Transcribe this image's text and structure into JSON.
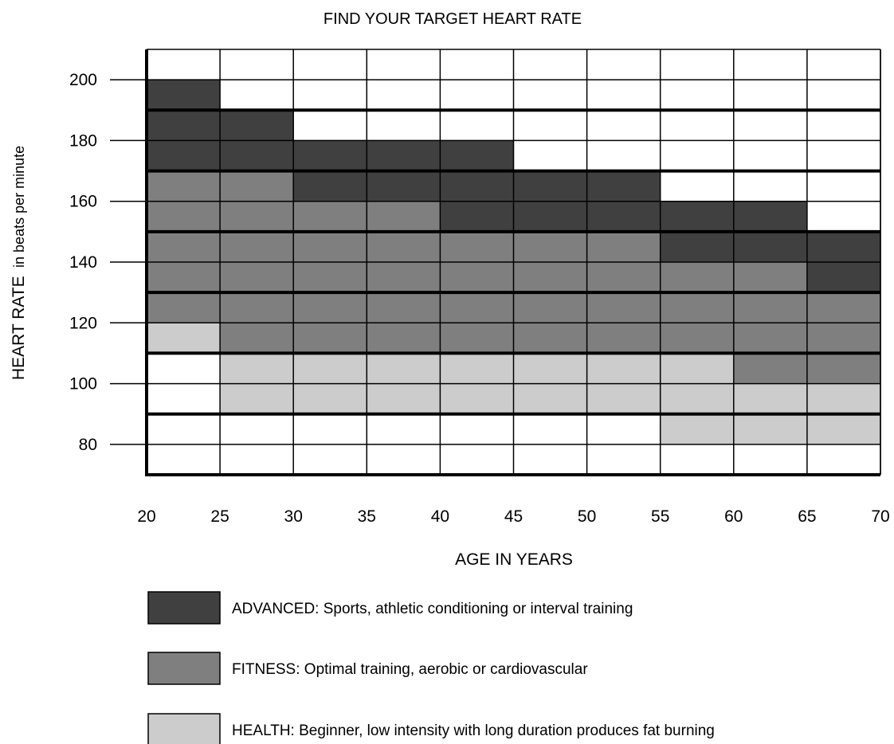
{
  "chart_data": {
    "type": "heatmap",
    "title": "FIND YOUR TARGET HEART RATE",
    "xlabel": "AGE IN YEARS",
    "ylabel": "HEART RATE",
    "ylabel_suffix": "in beats per minute",
    "xlim": [
      20,
      70
    ],
    "ylim": [
      70,
      210
    ],
    "x_ticks": [
      20,
      25,
      30,
      35,
      40,
      45,
      50,
      55,
      60,
      65,
      70
    ],
    "y_ticks": [
      80,
      100,
      120,
      140,
      160,
      180,
      200
    ],
    "grid": true,
    "legend_position": "bottom",
    "zones": [
      {
        "key": "advanced",
        "label": "ADVANCED:  Sports, athletic conditioning or interval training",
        "color": "#404040"
      },
      {
        "key": "fitness",
        "label": "FITNESS:  Optimal training, aerobic or cardiovascular",
        "color": "#7f7f7f"
      },
      {
        "key": "health",
        "label": "HEALTH:  Beginner, low intensity with long duration produces fat burning",
        "color": "#cccccc"
      }
    ],
    "age_bands": [
      {
        "age": [
          20,
          25
        ],
        "health": [
          110,
          120
        ],
        "fitness": [
          120,
          170
        ],
        "advanced": [
          170,
          200
        ]
      },
      {
        "age": [
          25,
          30
        ],
        "health": [
          90,
          110
        ],
        "fitness": [
          110,
          170
        ],
        "advanced": [
          170,
          190
        ]
      },
      {
        "age": [
          30,
          35
        ],
        "health": [
          90,
          110
        ],
        "fitness": [
          110,
          160
        ],
        "advanced": [
          160,
          180
        ]
      },
      {
        "age": [
          35,
          40
        ],
        "health": [
          90,
          110
        ],
        "fitness": [
          110,
          160
        ],
        "advanced": [
          160,
          180
        ]
      },
      {
        "age": [
          40,
          45
        ],
        "health": [
          90,
          110
        ],
        "fitness": [
          110,
          150
        ],
        "advanced": [
          150,
          180
        ]
      },
      {
        "age": [
          45,
          50
        ],
        "health": [
          90,
          110
        ],
        "fitness": [
          110,
          150
        ],
        "advanced": [
          150,
          170
        ]
      },
      {
        "age": [
          50,
          55
        ],
        "health": [
          90,
          110
        ],
        "fitness": [
          110,
          150
        ],
        "advanced": [
          150,
          170
        ]
      },
      {
        "age": [
          55,
          60
        ],
        "health": [
          80,
          110
        ],
        "fitness": [
          110,
          140
        ],
        "advanced": [
          140,
          160
        ]
      },
      {
        "age": [
          60,
          65
        ],
        "health": [
          80,
          100
        ],
        "fitness": [
          100,
          140
        ],
        "advanced": [
          140,
          160
        ]
      },
      {
        "age": [
          65,
          70
        ],
        "health": [
          80,
          100
        ],
        "fitness": [
          100,
          130
        ],
        "advanced": [
          130,
          150
        ]
      }
    ]
  }
}
